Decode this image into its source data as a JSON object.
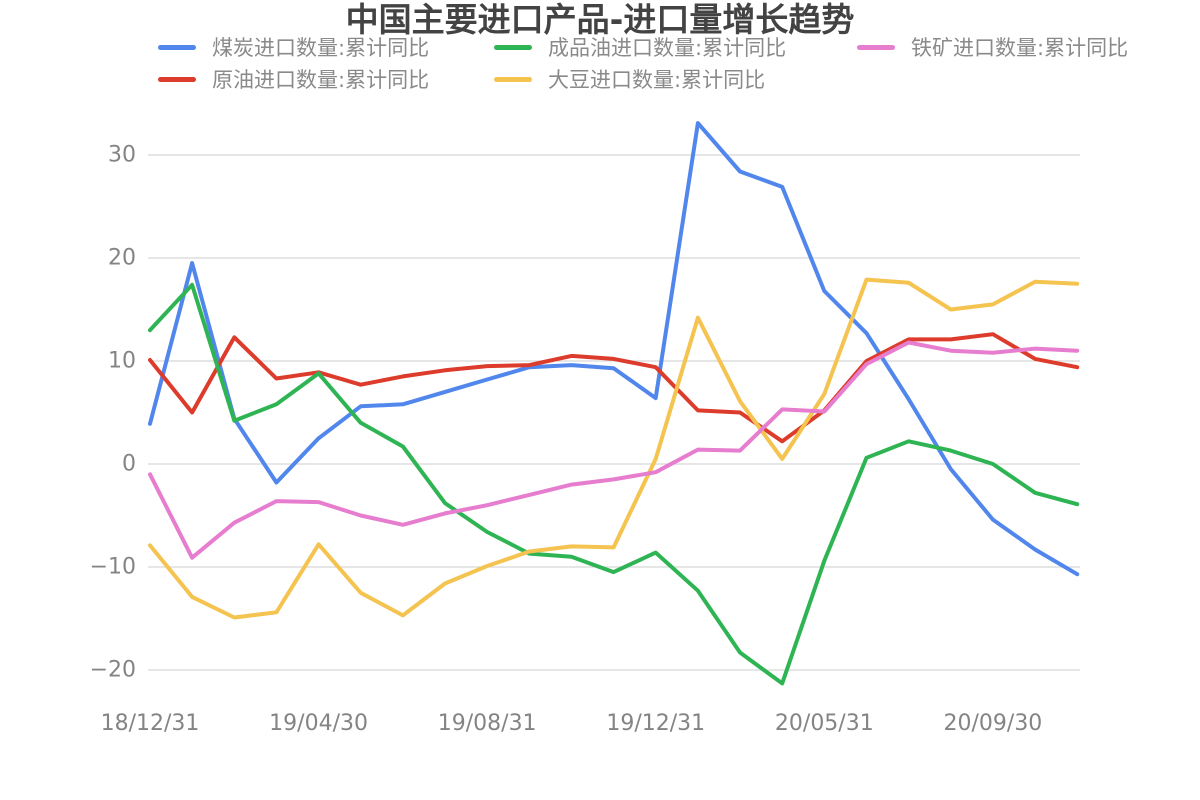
{
  "title": "中国主要进口产品-进口量增长趋势",
  "colors": {
    "coal": "#5186EC",
    "crude_oil": "#DD3B2B",
    "refined_oil": "#2FB454",
    "soybean": "#F4C350",
    "iron_ore": "#E67DCE",
    "grid": "#D8D8D8",
    "tick_text": "#848484",
    "legend_text": "#8A8A8A",
    "title_text": "#434343",
    "background": "#FFFFFF"
  },
  "legend": {
    "items": [
      {
        "label": "煤炭进口数量:累计同比",
        "color_key": "coal",
        "row": 0,
        "col": 0
      },
      {
        "label": "成品油进口数量:累计同比",
        "color_key": "refined_oil",
        "row": 0,
        "col": 1
      },
      {
        "label": "铁矿进口数量:累计同比",
        "color_key": "iron_ore",
        "row": 0,
        "col": 2
      },
      {
        "label": "原油进口数量:累计同比",
        "color_key": "crude_oil",
        "row": 1,
        "col": 0
      },
      {
        "label": "大豆进口数量:累计同比",
        "color_key": "soybean",
        "row": 1,
        "col": 1
      }
    ]
  },
  "chart_data": {
    "type": "line",
    "n_points": 23,
    "x_tick_labels": [
      "18/12/31",
      "19/04/30",
      "19/08/31",
      "19/12/31",
      "20/05/31",
      "20/09/30"
    ],
    "x_tick_point_indices": [
      0,
      4,
      8,
      12,
      16,
      20
    ],
    "y_tick_labels": [
      "30",
      "20",
      "10",
      "0",
      "−10",
      "−20"
    ],
    "y_tick_values": [
      30,
      20,
      10,
      0,
      -10,
      -20
    ],
    "ylim": [
      -25.3,
      33.4
    ],
    "grid": "horizontal-only",
    "legend_position": "top",
    "ylabel": "",
    "xlabel": "",
    "unit": "percent",
    "series": [
      {
        "name": "煤炭进口数量:累计同比",
        "color_key": "coal",
        "values": [
          3.9,
          19.5,
          4.4,
          -1.8,
          2.5,
          5.6,
          5.8,
          7.0,
          8.2,
          9.4,
          9.6,
          9.3,
          6.4,
          33.1,
          28.4,
          26.9,
          16.8,
          12.7,
          6.3,
          -0.5,
          -5.4,
          -8.3,
          -10.7
        ]
      },
      {
        "name": "原油进口数量:累计同比",
        "color_key": "crude_oil",
        "values": [
          10.1,
          5.0,
          12.3,
          8.3,
          8.9,
          7.7,
          8.5,
          9.1,
          9.5,
          9.6,
          10.5,
          10.2,
          9.4,
          5.2,
          5.0,
          2.2,
          5.2,
          10.0,
          12.1,
          12.1,
          12.6,
          10.2,
          9.4
        ]
      },
      {
        "name": "成品油进口数量:累计同比",
        "color_key": "refined_oil",
        "values": [
          13.0,
          17.4,
          4.2,
          5.8,
          8.8,
          4.0,
          1.7,
          -3.8,
          -6.6,
          -8.7,
          -9.0,
          -10.5,
          -8.6,
          -12.3,
          -18.3,
          -21.3,
          -9.4,
          0.6,
          2.2,
          1.3,
          0.0,
          -2.8,
          -3.9
        ]
      },
      {
        "name": "大豆进口数量:累计同比",
        "color_key": "soybean",
        "values": [
          -7.9,
          -12.9,
          -14.9,
          -14.4,
          -7.8,
          -12.5,
          -14.7,
          -11.6,
          -9.9,
          -8.5,
          -8.0,
          -8.1,
          0.5,
          14.2,
          6.1,
          0.5,
          6.8,
          17.9,
          17.6,
          15.0,
          15.5,
          17.7,
          17.5
        ]
      },
      {
        "name": "铁矿进口数量:累计同比",
        "color_key": "iron_ore",
        "values": [
          -1.0,
          -9.1,
          -5.7,
          -3.6,
          -3.7,
          -5.0,
          -5.9,
          -4.8,
          -4.0,
          -3.0,
          -2.0,
          -1.5,
          -0.8,
          1.4,
          1.3,
          5.3,
          5.1,
          9.7,
          11.8,
          11.0,
          10.8,
          11.2,
          11.0
        ]
      }
    ]
  }
}
